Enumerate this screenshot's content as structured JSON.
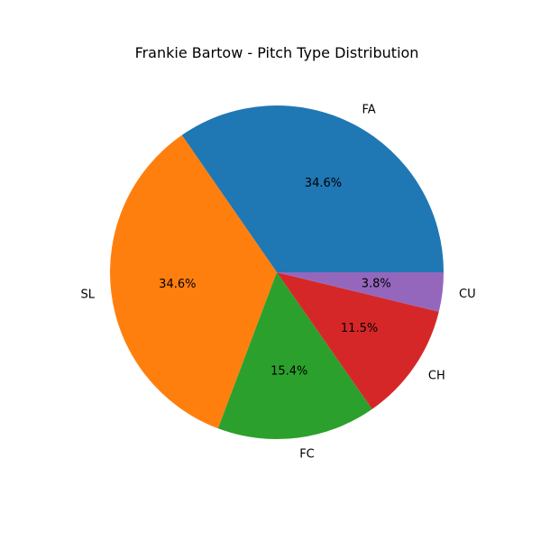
{
  "chart_data": {
    "type": "pie",
    "title": "Frankie Bartow - Pitch Type Distribution",
    "slices": [
      {
        "label": "FA",
        "value": 34.6,
        "pct_label": "34.6%",
        "color": "#1f77b4"
      },
      {
        "label": "SL",
        "value": 34.6,
        "pct_label": "34.6%",
        "color": "#ff7f0e"
      },
      {
        "label": "FC",
        "value": 15.4,
        "pct_label": "15.4%",
        "color": "#2ca02c"
      },
      {
        "label": "CH",
        "value": 11.5,
        "pct_label": "11.5%",
        "color": "#d62728"
      },
      {
        "label": "CU",
        "value": 3.8,
        "pct_label": "3.8%",
        "color": "#9467bd"
      }
    ],
    "start_angle_deg": 0,
    "direction": "counterclockwise",
    "legend": "none"
  }
}
